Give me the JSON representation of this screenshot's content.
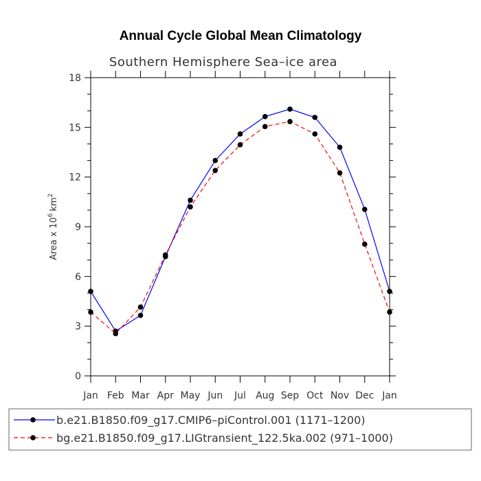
{
  "chart_data": {
    "type": "line",
    "title": "Annual Cycle Global Mean Climatology",
    "subtitle": "Southern Hemisphere Sea–ice area",
    "ylabel_prefix": "Area x 10",
    "ylabel_exponent": "6",
    "ylabel_unit": "km",
    "ylabel_unit_exponent": "2",
    "xlabel": "",
    "categories": [
      "Jan",
      "Feb",
      "Mar",
      "Apr",
      "May",
      "Jun",
      "Jul",
      "Aug",
      "Sep",
      "Oct",
      "Nov",
      "Dec",
      "Jan"
    ],
    "ylim": [
      0,
      18
    ],
    "yticks": [
      0,
      3,
      6,
      9,
      12,
      15,
      18
    ],
    "grid": false,
    "legend_position": "bottom",
    "series": [
      {
        "name": "b.e21.B1850.f09_g17.CMIP6–piControl.001 (1171–1200)",
        "color": "#0000ff",
        "dashed": false,
        "values": [
          5.1,
          2.7,
          3.65,
          7.2,
          10.6,
          13.0,
          14.6,
          15.65,
          16.1,
          15.6,
          13.8,
          10.05,
          5.1
        ]
      },
      {
        "name": "bg.e21.B1850.f09_g17.LIGtransient_122.5ka.002 (971–1000)",
        "color": "#ff0000",
        "dashed": true,
        "values": [
          3.85,
          2.55,
          4.15,
          7.3,
          10.2,
          12.4,
          13.95,
          15.05,
          15.35,
          14.6,
          12.25,
          7.95,
          3.85
        ]
      }
    ]
  }
}
